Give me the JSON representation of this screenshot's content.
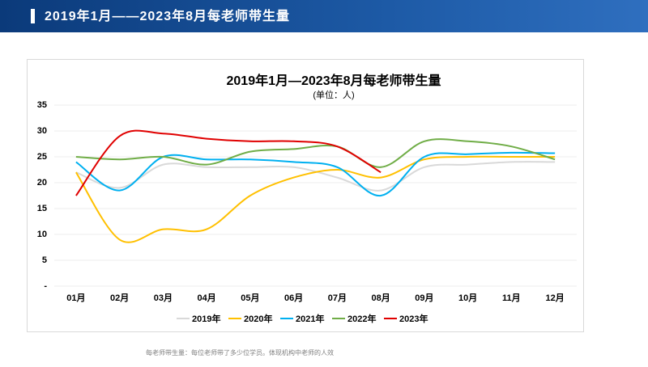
{
  "header": {
    "title": "2019年1月——2023年8月每老师带生量"
  },
  "footnote": "每老师带生量：每位老师带了多少位学员。体现机构中老师的人效",
  "chart_data": {
    "type": "line",
    "title": "2019年1月—2023年8月每老师带生量",
    "subtitle": "(单位：人)",
    "categories": [
      "01月",
      "02月",
      "03月",
      "04月",
      "05月",
      "06月",
      "07月",
      "08月",
      "09月",
      "10月",
      "11月",
      "12月"
    ],
    "series": [
      {
        "name": "2019年",
        "color": "#d9d9d9",
        "values": [
          22,
          19,
          23.5,
          23,
          23,
          23,
          21,
          18.5,
          23,
          23.5,
          24,
          24
        ]
      },
      {
        "name": "2020年",
        "color": "#ffc000",
        "values": [
          22,
          9,
          11,
          11,
          17.5,
          21,
          22.5,
          21,
          24.5,
          25,
          25,
          25
        ]
      },
      {
        "name": "2021年",
        "color": "#00b0f0",
        "values": [
          24,
          18.5,
          25,
          24.5,
          24.5,
          24,
          23,
          17.5,
          25,
          25.5,
          25.8,
          25.7
        ]
      },
      {
        "name": "2022年",
        "color": "#70ad47",
        "values": [
          25,
          24.5,
          25,
          23.5,
          26,
          26.5,
          27,
          23,
          28,
          28,
          27,
          24.5
        ]
      },
      {
        "name": "2023年",
        "color": "#e00000",
        "values": [
          17.5,
          29,
          29.5,
          28.5,
          28,
          28,
          27,
          22,
          null,
          null,
          null,
          null
        ]
      }
    ],
    "ylim": [
      0,
      35
    ],
    "yticks": [
      {
        "value": 0,
        "label": "-"
      },
      5,
      10,
      15,
      20,
      25,
      30,
      35
    ],
    "grid": true,
    "legend": "bottom",
    "smooth": true
  }
}
